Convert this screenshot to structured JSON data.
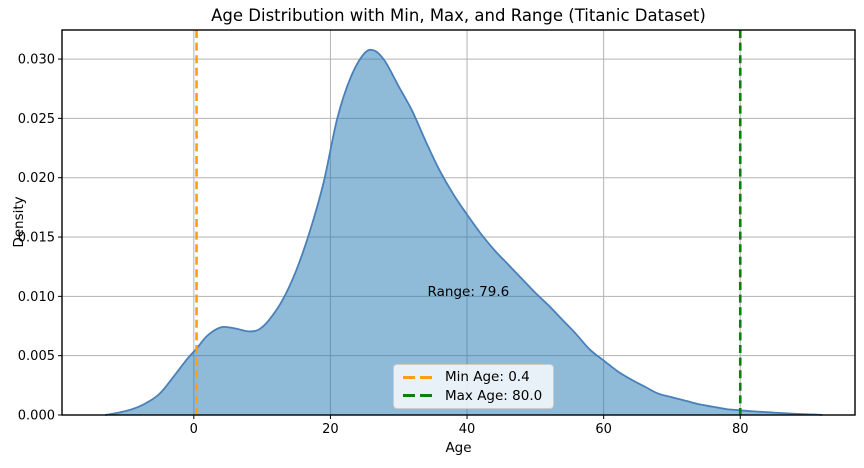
{
  "chart_data": {
    "type": "area",
    "title": "Age Distribution with Min, Max, and Range (Titanic Dataset)",
    "xlabel": "Age",
    "ylabel": "Density",
    "xlim": [
      -19.3,
      96.8
    ],
    "ylim": [
      0,
      0.03245
    ],
    "grid": true,
    "xticks": {
      "values": [
        0,
        20,
        40,
        60,
        80
      ],
      "labels": [
        "0",
        "20",
        "40",
        "60",
        "80"
      ]
    },
    "yticks": {
      "values": [
        0,
        0.005,
        0.01,
        0.015,
        0.02,
        0.025,
        0.03
      ],
      "labels": [
        "0.000",
        "0.005",
        "0.010",
        "0.015",
        "0.020",
        "0.025",
        "0.030"
      ]
    },
    "series": [
      {
        "name": "age-kde-density",
        "x": [
          -13,
          -11,
          -9,
          -7,
          -5,
          -3,
          -1,
          0.4,
          2,
          4,
          6,
          8,
          9.5,
          11,
          13,
          15,
          17,
          19,
          21,
          23,
          25,
          26.5,
          28,
          30,
          32,
          34,
          36,
          38,
          40,
          42,
          44,
          46,
          48,
          50,
          52,
          54,
          56,
          58,
          60,
          62,
          64,
          66,
          68,
          70,
          72,
          74,
          76,
          78,
          80,
          82,
          85,
          88,
          91,
          92
        ],
        "y": [
          0,
          0.0002,
          0.0005,
          0.001,
          0.0018,
          0.0032,
          0.0047,
          0.0056,
          0.0067,
          0.0074,
          0.0073,
          0.00705,
          0.0072,
          0.008,
          0.0097,
          0.0122,
          0.0155,
          0.0196,
          0.025,
          0.0285,
          0.0305,
          0.0307,
          0.0298,
          0.0277,
          0.0256,
          0.023,
          0.0206,
          0.0186,
          0.0169,
          0.0153,
          0.0139,
          0.0127,
          0.0115,
          0.0103,
          0.0092,
          0.008,
          0.0068,
          0.0055,
          0.0046,
          0.0037,
          0.003,
          0.0024,
          0.0018,
          0.0015,
          0.0012,
          0.0009,
          0.0007,
          0.0005,
          0.0004,
          0.0003,
          0.0002,
          0.0001,
          4e-05,
          0
        ]
      }
    ],
    "vlines": [
      {
        "name": "min-age-line",
        "x": 0.4,
        "color": "#ff9d14",
        "label": "Min Age: 0.4"
      },
      {
        "name": "max-age-line",
        "x": 80.0,
        "color": "#0b800b",
        "label": "Max Age: 80.0"
      }
    ],
    "annotation": {
      "text": "Range: 79.6",
      "x": 40.2,
      "y": 0.0104
    },
    "legend": [
      {
        "label": "Min Age: 0.4"
      },
      {
        "label": "Max Age: 80.0"
      }
    ],
    "legend_position": "lower center",
    "colors": {
      "curve_line": "#4a80b9",
      "curve_fill": "#1f77b4",
      "fill_opacity": 0.5,
      "grid": "#b3b3b3",
      "spine": "#000000",
      "tick_text": "#000000"
    }
  }
}
